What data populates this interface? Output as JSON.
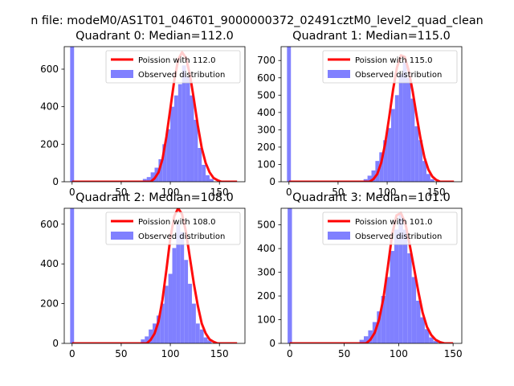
{
  "figure": {
    "suptitle": "n file: modeM0/AS1T01_046T01_9000000372_02491cztM0_level2_quad_clean",
    "colors": {
      "hist": "#8080ff",
      "fit": "#ff0000"
    }
  },
  "chart_data": [
    {
      "type": "bar",
      "title": "Quadrant 0: Median=112.0",
      "xlim": [
        -8,
        176
      ],
      "ylim": [
        0,
        720
      ],
      "xticks": [
        0,
        50,
        100,
        150
      ],
      "yticks": [
        0,
        200,
        400,
        600
      ],
      "legend": {
        "fit_label": "Poission with 112.0",
        "hist_label": "Observed distribution",
        "loc": "upper right"
      },
      "poisson_mean": 112.0,
      "spike": {
        "x": 0,
        "value": 720
      },
      "hist": {
        "x": [
          74,
          78,
          82,
          86,
          90,
          94,
          98,
          102,
          106,
          110,
          114,
          118,
          122,
          126,
          130,
          134,
          138,
          142
        ],
        "values": [
          15,
          25,
          50,
          75,
          120,
          200,
          280,
          400,
          460,
          520,
          620,
          560,
          460,
          330,
          180,
          90,
          35,
          15
        ]
      },
      "fit": {
        "x": [
          0,
          80,
          84,
          88,
          92,
          96,
          100,
          104,
          108,
          112,
          116,
          120,
          124,
          128,
          132,
          136,
          140,
          144,
          148,
          152,
          168
        ],
        "values": [
          0,
          0,
          18,
          50,
          120,
          240,
          390,
          540,
          650,
          690,
          660,
          570,
          440,
          300,
          180,
          100,
          50,
          20,
          8,
          0,
          0
        ]
      }
    },
    {
      "type": "bar",
      "title": "Quadrant 1: Median=115.0",
      "xlim": [
        -8,
        176
      ],
      "ylim": [
        0,
        780
      ],
      "xticks": [
        0,
        50,
        100,
        150
      ],
      "yticks": [
        0,
        100,
        200,
        300,
        400,
        500,
        600,
        700
      ],
      "legend": {
        "fit_label": "Poission with 115.0",
        "hist_label": "Observed distribution",
        "loc": "upper right"
      },
      "poisson_mean": 115.0,
      "spike": {
        "x": 0,
        "value": 780
      },
      "hist": {
        "x": [
          78,
          82,
          86,
          90,
          94,
          98,
          102,
          106,
          110,
          114,
          118,
          122,
          126,
          130,
          134,
          138,
          142,
          146
        ],
        "values": [
          15,
          35,
          65,
          120,
          170,
          240,
          310,
          420,
          500,
          620,
          690,
          600,
          480,
          320,
          240,
          120,
          45,
          15
        ]
      },
      "fit": {
        "x": [
          0,
          82,
          86,
          90,
          94,
          98,
          102,
          106,
          110,
          114,
          118,
          122,
          126,
          130,
          134,
          138,
          142,
          146,
          150,
          154,
          168
        ],
        "values": [
          0,
          0,
          15,
          45,
          110,
          220,
          370,
          530,
          660,
          730,
          720,
          640,
          520,
          380,
          250,
          140,
          70,
          30,
          10,
          0,
          0
        ]
      }
    },
    {
      "type": "bar",
      "title": "Quadrant 2: Median=108.0",
      "xlim": [
        -8,
        176
      ],
      "ylim": [
        0,
        680
      ],
      "xticks": [
        0,
        50,
        100,
        150
      ],
      "yticks": [
        0,
        200,
        400,
        600
      ],
      "legend": {
        "fit_label": "Poission with 108.0",
        "hist_label": "Observed distribution",
        "loc": "upper right"
      },
      "poisson_mean": 108.0,
      "spike": {
        "x": 0,
        "value": 680
      },
      "hist": {
        "x": [
          72,
          76,
          80,
          84,
          88,
          92,
          96,
          100,
          104,
          108,
          112,
          116,
          120,
          124,
          128,
          132,
          136,
          140
        ],
        "values": [
          20,
          35,
          70,
          100,
          140,
          200,
          290,
          350,
          480,
          600,
          560,
          420,
          300,
          200,
          100,
          70,
          30,
          15
        ]
      },
      "fit": {
        "x": [
          0,
          76,
          80,
          84,
          88,
          92,
          96,
          100,
          104,
          108,
          112,
          116,
          120,
          124,
          128,
          132,
          136,
          140,
          144,
          148,
          168
        ],
        "values": [
          0,
          0,
          18,
          50,
          110,
          220,
          370,
          530,
          640,
          680,
          650,
          560,
          430,
          300,
          190,
          100,
          50,
          20,
          8,
          0,
          0
        ]
      }
    },
    {
      "type": "bar",
      "title": "Quadrant 3: Median=101.0",
      "xlim": [
        -8,
        158
      ],
      "ylim": [
        0,
        570
      ],
      "xticks": [
        0,
        50,
        100,
        150
      ],
      "yticks": [
        0,
        100,
        200,
        300,
        400,
        500
      ],
      "legend": {
        "fit_label": "Poission with 101.0",
        "hist_label": "Observed distribution",
        "loc": "upper right"
      },
      "poisson_mean": 101.0,
      "spike": {
        "x": 0,
        "value": 570
      },
      "hist": {
        "x": [
          66,
          70,
          74,
          78,
          82,
          86,
          90,
          94,
          98,
          102,
          106,
          110,
          114,
          118,
          122,
          126,
          130,
          134
        ],
        "values": [
          15,
          30,
          55,
          90,
          135,
          200,
          280,
          390,
          480,
          545,
          480,
          380,
          280,
          180,
          110,
          60,
          25,
          10
        ]
      },
      "fit": {
        "x": [
          0,
          70,
          74,
          78,
          82,
          86,
          90,
          94,
          98,
          102,
          106,
          110,
          114,
          118,
          122,
          126,
          130,
          134,
          138,
          142,
          150
        ],
        "values": [
          0,
          0,
          15,
          45,
          100,
          190,
          320,
          460,
          540,
          550,
          510,
          420,
          320,
          220,
          130,
          70,
          35,
          15,
          5,
          0,
          0
        ]
      }
    }
  ]
}
